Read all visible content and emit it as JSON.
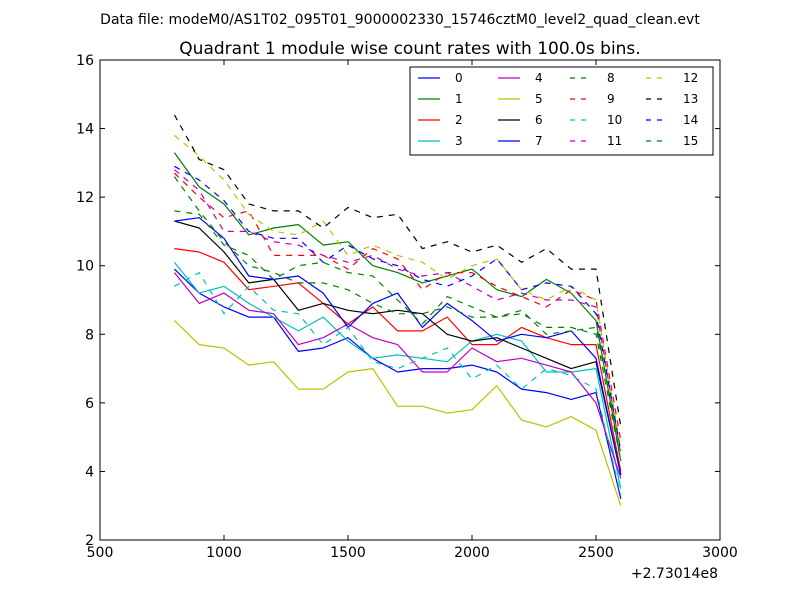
{
  "chart_data": {
    "type": "line",
    "suptitle": "Data file: modeM0/AS1T02_095T01_9000002330_15746cztM0_level2_quad_clean.evt",
    "title": "Quadrant 1 module wise count rates with 100.0s bins.",
    "xlabel": "",
    "ylabel": "",
    "xlim": [
      500,
      3000
    ],
    "ylim": [
      2,
      16
    ],
    "xticks": [
      500,
      1000,
      1500,
      2000,
      2500,
      3000
    ],
    "yticks": [
      2,
      4,
      6,
      8,
      10,
      12,
      14,
      16
    ],
    "x_offset_label": "+2.73014e8",
    "legend_location": "upper right",
    "legend_columns": 4,
    "x": [
      800,
      900,
      1000,
      1100,
      1200,
      1300,
      1400,
      1500,
      1600,
      1700,
      1800,
      1900,
      2000,
      2100,
      2200,
      2300,
      2400,
      2500,
      2600
    ],
    "series": [
      {
        "name": "0",
        "color": "#0000ff",
        "dash": "solid",
        "values": [
          9.9,
          9.2,
          8.8,
          8.5,
          8.5,
          7.5,
          7.6,
          7.9,
          7.3,
          6.9,
          7.0,
          7.0,
          7.1,
          6.9,
          6.4,
          6.3,
          6.1,
          6.3,
          3.2
        ]
      },
      {
        "name": "1",
        "color": "#008000",
        "dash": "solid",
        "values": [
          13.3,
          12.3,
          11.8,
          10.9,
          11.1,
          11.2,
          10.6,
          10.7,
          10.0,
          9.8,
          9.5,
          9.7,
          9.9,
          9.3,
          9.1,
          9.6,
          9.2,
          8.4,
          4.3
        ]
      },
      {
        "name": "2",
        "color": "#ff0000",
        "dash": "solid",
        "values": [
          10.5,
          10.4,
          10.1,
          9.3,
          9.4,
          9.5,
          8.9,
          8.3,
          8.8,
          8.1,
          8.1,
          8.5,
          7.7,
          7.7,
          8.2,
          7.9,
          7.7,
          7.7,
          4.0
        ]
      },
      {
        "name": "3",
        "color": "#00bfbf",
        "dash": "solid",
        "values": [
          10.1,
          9.2,
          9.4,
          8.9,
          8.5,
          8.1,
          8.5,
          7.8,
          7.3,
          7.4,
          7.3,
          7.2,
          7.8,
          8.0,
          7.8,
          6.9,
          6.9,
          7.0,
          3.5
        ]
      },
      {
        "name": "4",
        "color": "#bf00bf",
        "dash": "solid",
        "values": [
          9.8,
          8.9,
          9.2,
          8.7,
          8.6,
          7.7,
          7.9,
          8.3,
          7.9,
          7.7,
          6.9,
          6.9,
          7.6,
          7.2,
          7.3,
          7.1,
          6.9,
          6.0,
          3.8
        ]
      },
      {
        "name": "5",
        "color": "#bfbf00",
        "dash": "solid",
        "values": [
          8.4,
          7.7,
          7.6,
          7.1,
          7.2,
          6.4,
          6.4,
          6.9,
          7.0,
          5.9,
          5.9,
          5.7,
          5.8,
          6.5,
          5.5,
          5.3,
          5.6,
          5.2,
          3.0
        ]
      },
      {
        "name": "6",
        "color": "#000000",
        "dash": "solid",
        "values": [
          11.3,
          11.1,
          10.4,
          9.5,
          9.6,
          8.7,
          8.9,
          8.7,
          8.6,
          8.7,
          8.6,
          8.0,
          7.8,
          7.9,
          7.6,
          7.3,
          7.0,
          7.2,
          3.9
        ]
      },
      {
        "name": "7",
        "color": "#0000ff",
        "dash": "solid",
        "values": [
          11.3,
          11.4,
          10.8,
          9.7,
          9.6,
          9.7,
          9.2,
          8.2,
          8.9,
          9.2,
          8.2,
          8.9,
          8.4,
          7.8,
          8.0,
          7.9,
          8.1,
          7.3,
          3.9
        ]
      },
      {
        "name": "8",
        "color": "#008000",
        "dash": "dashed",
        "values": [
          11.6,
          11.5,
          10.6,
          10.3,
          9.6,
          10.0,
          10.1,
          9.8,
          9.7,
          9.0,
          8.3,
          9.1,
          8.8,
          8.5,
          8.6,
          8.2,
          8.2,
          8.0,
          4.3
        ]
      },
      {
        "name": "9",
        "color": "#ff0000",
        "dash": "dashed",
        "values": [
          12.7,
          12.0,
          11.4,
          11.6,
          10.3,
          10.3,
          10.3,
          9.9,
          10.5,
          10.2,
          9.3,
          9.8,
          9.8,
          9.4,
          9.1,
          8.8,
          9.3,
          9.0,
          4.9
        ]
      },
      {
        "name": "10",
        "color": "#00bfbf",
        "dash": "dashed",
        "values": [
          9.4,
          9.8,
          8.6,
          9.4,
          8.7,
          8.6,
          7.7,
          8.2,
          7.2,
          7.0,
          7.3,
          7.6,
          6.7,
          7.1,
          6.4,
          7.0,
          6.8,
          6.4,
          3.3
        ]
      },
      {
        "name": "11",
        "color": "#bf00bf",
        "dash": "dashed",
        "values": [
          12.8,
          12.2,
          11.0,
          11.0,
          10.7,
          10.6,
          10.3,
          10.1,
          10.3,
          9.9,
          9.7,
          9.8,
          9.4,
          9.0,
          9.2,
          9.0,
          9.0,
          8.8,
          4.5
        ]
      },
      {
        "name": "12",
        "color": "#bfbf00",
        "dash": "dashed",
        "values": [
          13.8,
          13.2,
          12.5,
          11.5,
          11.0,
          10.9,
          11.3,
          10.3,
          10.6,
          10.3,
          10.1,
          9.6,
          10.0,
          10.2,
          9.3,
          9.0,
          9.4,
          9.0,
          4.6
        ]
      },
      {
        "name": "13",
        "color": "#000000",
        "dash": "dashed",
        "values": [
          14.4,
          13.1,
          12.8,
          11.8,
          11.6,
          11.6,
          11.1,
          11.7,
          11.4,
          11.5,
          10.5,
          10.7,
          10.4,
          10.6,
          10.1,
          10.5,
          9.9,
          9.9,
          5.3
        ]
      },
      {
        "name": "14",
        "color": "#0000ff",
        "dash": "dashed",
        "values": [
          12.9,
          12.5,
          11.9,
          11.0,
          10.8,
          10.8,
          10.1,
          10.6,
          10.2,
          10.0,
          9.6,
          9.4,
          9.7,
          10.2,
          9.3,
          9.5,
          9.4,
          8.6,
          4.6
        ]
      },
      {
        "name": "15",
        "color": "#008000",
        "dash": "dashed",
        "values": [
          12.6,
          11.6,
          10.7,
          10.0,
          9.8,
          9.5,
          9.5,
          9.3,
          8.9,
          8.6,
          8.6,
          8.8,
          8.5,
          8.5,
          8.7,
          8.0,
          8.1,
          8.2,
          4.6
        ]
      }
    ]
  }
}
